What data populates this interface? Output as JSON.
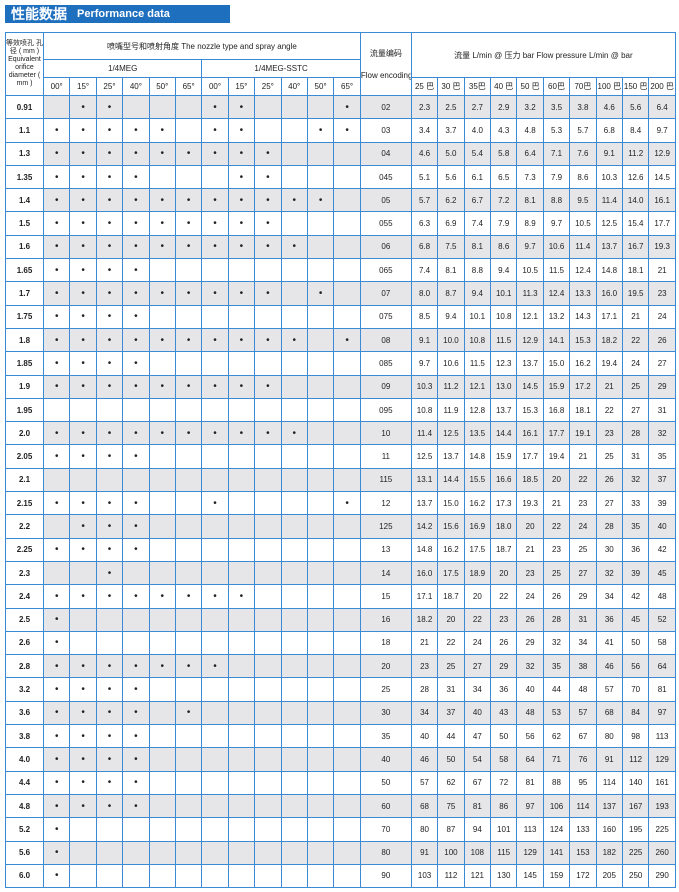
{
  "title": {
    "cn": "性能数据",
    "en": "Performance data"
  },
  "header": {
    "diameter": "等效喷孔 孔径 ( mm ) Equivalent orifice diameter ( mm )",
    "nozzle": "喷嘴型号和喷射角度      The nozzle type and spray angle",
    "flow_encoding_cn": "流量编码",
    "flow_encoding_en": "Flow encoding",
    "flow": "流量 L/min @ 压力 bar    Flow pressure L/min @ bar",
    "groups": [
      "1/4MEG",
      "1/4MEG-SSTC"
    ],
    "angles": [
      "00°",
      "15°",
      "25°",
      "40°",
      "50°",
      "65°",
      "00°",
      "15°",
      "25°",
      "40°",
      "50°",
      "65°"
    ],
    "pressures": [
      "25 巴",
      "30 巴",
      "35巴",
      "40 巴",
      "50 巴",
      "60巴",
      "70巴",
      "100 巴",
      "150 巴",
      "200 巴"
    ]
  },
  "dot_symbol": "•",
  "rows": [
    {
      "d": "0.91",
      "dots": "011000110001",
      "code": "02",
      "flow": [
        "2.3",
        "2.5",
        "2.7",
        "2.9",
        "3.2",
        "3.5",
        "3.8",
        "4.6",
        "5.6",
        "6.4"
      ]
    },
    {
      "d": "1.1",
      "dots": "111110110011",
      "code": "03",
      "flow": [
        "3.4",
        "3.7",
        "4.0",
        "4.3",
        "4.8",
        "5.3",
        "5.7",
        "6.8",
        "8.4",
        "9.7"
      ]
    },
    {
      "d": "1.3",
      "dots": "111111111000",
      "code": "04",
      "flow": [
        "4.6",
        "5.0",
        "5.4",
        "5.8",
        "6.4",
        "7.1",
        "7.6",
        "9.1",
        "11.2",
        "12.9"
      ]
    },
    {
      "d": "1.35",
      "dots": "111100011000",
      "code": "045",
      "flow": [
        "5.1",
        "5.6",
        "6.1",
        "6.5",
        "7.3",
        "7.9",
        "8.6",
        "10.3",
        "12.6",
        "14.5"
      ]
    },
    {
      "d": "1.4",
      "dots": "111111111110",
      "code": "05",
      "flow": [
        "5.7",
        "6.2",
        "6.7",
        "7.2",
        "8.1",
        "8.8",
        "9.5",
        "11.4",
        "14.0",
        "16.1"
      ]
    },
    {
      "d": "1.5",
      "dots": "111111111000",
      "code": "055",
      "flow": [
        "6.3",
        "6.9",
        "7.4",
        "7.9",
        "8.9",
        "9.7",
        "10.5",
        "12.5",
        "15.4",
        "17.7"
      ]
    },
    {
      "d": "1.6",
      "dots": "111111111100",
      "code": "06",
      "flow": [
        "6.8",
        "7.5",
        "8.1",
        "8.6",
        "9.7",
        "10.6",
        "11.4",
        "13.7",
        "16.7",
        "19.3"
      ]
    },
    {
      "d": "1.65",
      "dots": "111100000000",
      "code": "065",
      "flow": [
        "7.4",
        "8.1",
        "8.8",
        "9.4",
        "10.5",
        "11.5",
        "12.4",
        "14.8",
        "18.1",
        "21"
      ]
    },
    {
      "d": "1.7",
      "dots": "111111111010",
      "code": "07",
      "flow": [
        "8.0",
        "8.7",
        "9.4",
        "10.1",
        "11.3",
        "12.4",
        "13.3",
        "16.0",
        "19.5",
        "23"
      ]
    },
    {
      "d": "1.75",
      "dots": "111100000000",
      "code": "075",
      "flow": [
        "8.5",
        "9.4",
        "10.1",
        "10.8",
        "12.1",
        "13.2",
        "14.3",
        "17.1",
        "21",
        "24"
      ]
    },
    {
      "d": "1.8",
      "dots": "111111111101",
      "code": "08",
      "flow": [
        "9.1",
        "10.0",
        "10.8",
        "11.5",
        "12.9",
        "14.1",
        "15.3",
        "18.2",
        "22",
        "26"
      ]
    },
    {
      "d": "1.85",
      "dots": "111100000000",
      "code": "085",
      "flow": [
        "9.7",
        "10.6",
        "11.5",
        "12.3",
        "13.7",
        "15.0",
        "16.2",
        "19.4",
        "24",
        "27"
      ]
    },
    {
      "d": "1.9",
      "dots": "111111111000",
      "code": "09",
      "flow": [
        "10.3",
        "11.2",
        "12.1",
        "13.0",
        "14.5",
        "15.9",
        "17.2",
        "21",
        "25",
        "29"
      ]
    },
    {
      "d": "1.95",
      "dots": "000000000000",
      "code": "095",
      "flow": [
        "10.8",
        "11.9",
        "12.8",
        "13.7",
        "15.3",
        "16.8",
        "18.1",
        "22",
        "27",
        "31"
      ]
    },
    {
      "d": "2.0",
      "dots": "111111111100",
      "code": "10",
      "flow": [
        "11.4",
        "12.5",
        "13.5",
        "14.4",
        "16.1",
        "17.7",
        "19.1",
        "23",
        "28",
        "32"
      ]
    },
    {
      "d": "2.05",
      "dots": "111100000000",
      "code": "11",
      "flow": [
        "12.5",
        "13.7",
        "14.8",
        "15.9",
        "17.7",
        "19.4",
        "21",
        "25",
        "31",
        "35"
      ]
    },
    {
      "d": "2.1",
      "dots": "000000000000",
      "code": "115",
      "flow": [
        "13.1",
        "14.4",
        "15.5",
        "16.6",
        "18.5",
        "20",
        "22",
        "26",
        "32",
        "37"
      ]
    },
    {
      "d": "2.15",
      "dots": "111100100001",
      "code": "12",
      "flow": [
        "13.7",
        "15.0",
        "16.2",
        "17.3",
        "19.3",
        "21",
        "23",
        "27",
        "33",
        "39"
      ]
    },
    {
      "d": "2.2",
      "dots": "011100000000",
      "code": "125",
      "flow": [
        "14.2",
        "15.6",
        "16.9",
        "18.0",
        "20",
        "22",
        "24",
        "28",
        "35",
        "40"
      ]
    },
    {
      "d": "2.25",
      "dots": "111100000000",
      "code": "13",
      "flow": [
        "14.8",
        "16.2",
        "17.5",
        "18.7",
        "21",
        "23",
        "25",
        "30",
        "36",
        "42"
      ]
    },
    {
      "d": "2.3",
      "dots": "001000000000",
      "code": "14",
      "flow": [
        "16.0",
        "17.5",
        "18.9",
        "20",
        "23",
        "25",
        "27",
        "32",
        "39",
        "45"
      ]
    },
    {
      "d": "2.4",
      "dots": "111111110000",
      "code": "15",
      "flow": [
        "17.1",
        "18.7",
        "20",
        "22",
        "24",
        "26",
        "29",
        "34",
        "42",
        "48"
      ]
    },
    {
      "d": "2.5",
      "dots": "100000000000",
      "code": "16",
      "flow": [
        "18.2",
        "20",
        "22",
        "23",
        "26",
        "28",
        "31",
        "36",
        "45",
        "52"
      ]
    },
    {
      "d": "2.6",
      "dots": "100000000000",
      "code": "18",
      "flow": [
        "21",
        "22",
        "24",
        "26",
        "29",
        "32",
        "34",
        "41",
        "50",
        "58"
      ]
    },
    {
      "d": "2.8",
      "dots": "111111100000",
      "code": "20",
      "flow": [
        "23",
        "25",
        "27",
        "29",
        "32",
        "35",
        "38",
        "46",
        "56",
        "64"
      ]
    },
    {
      "d": "3.2",
      "dots": "111100000000",
      "code": "25",
      "flow": [
        "28",
        "31",
        "34",
        "36",
        "40",
        "44",
        "48",
        "57",
        "70",
        "81"
      ]
    },
    {
      "d": "3.6",
      "dots": "111101000000",
      "code": "30",
      "flow": [
        "34",
        "37",
        "40",
        "43",
        "48",
        "53",
        "57",
        "68",
        "84",
        "97"
      ]
    },
    {
      "d": "3.8",
      "dots": "111100000000",
      "code": "35",
      "flow": [
        "40",
        "44",
        "47",
        "50",
        "56",
        "62",
        "67",
        "80",
        "98",
        "113"
      ]
    },
    {
      "d": "4.0",
      "dots": "111100000000",
      "code": "40",
      "flow": [
        "46",
        "50",
        "54",
        "58",
        "64",
        "71",
        "76",
        "91",
        "112",
        "129"
      ]
    },
    {
      "d": "4.4",
      "dots": "111100000000",
      "code": "50",
      "flow": [
        "57",
        "62",
        "67",
        "72",
        "81",
        "88",
        "95",
        "114",
        "140",
        "161"
      ]
    },
    {
      "d": "4.8",
      "dots": "111100000000",
      "code": "60",
      "flow": [
        "68",
        "75",
        "81",
        "86",
        "97",
        "106",
        "114",
        "137",
        "167",
        "193"
      ]
    },
    {
      "d": "5.2",
      "dots": "100000000000",
      "code": "70",
      "flow": [
        "80",
        "87",
        "94",
        "101",
        "113",
        "124",
        "133",
        "160",
        "195",
        "225"
      ]
    },
    {
      "d": "5.6",
      "dots": "100000000000",
      "code": "80",
      "flow": [
        "91",
        "100",
        "108",
        "115",
        "129",
        "141",
        "153",
        "182",
        "225",
        "260"
      ]
    },
    {
      "d": "6.0",
      "dots": "100000000000",
      "code": "90",
      "flow": [
        "103",
        "112",
        "121",
        "130",
        "145",
        "159",
        "172",
        "205",
        "250",
        "290"
      ]
    }
  ],
  "colors": {
    "title_bg": "#1f6fbf",
    "grid": "#3a8ad6",
    "row_shade": "#e6e6e9"
  }
}
